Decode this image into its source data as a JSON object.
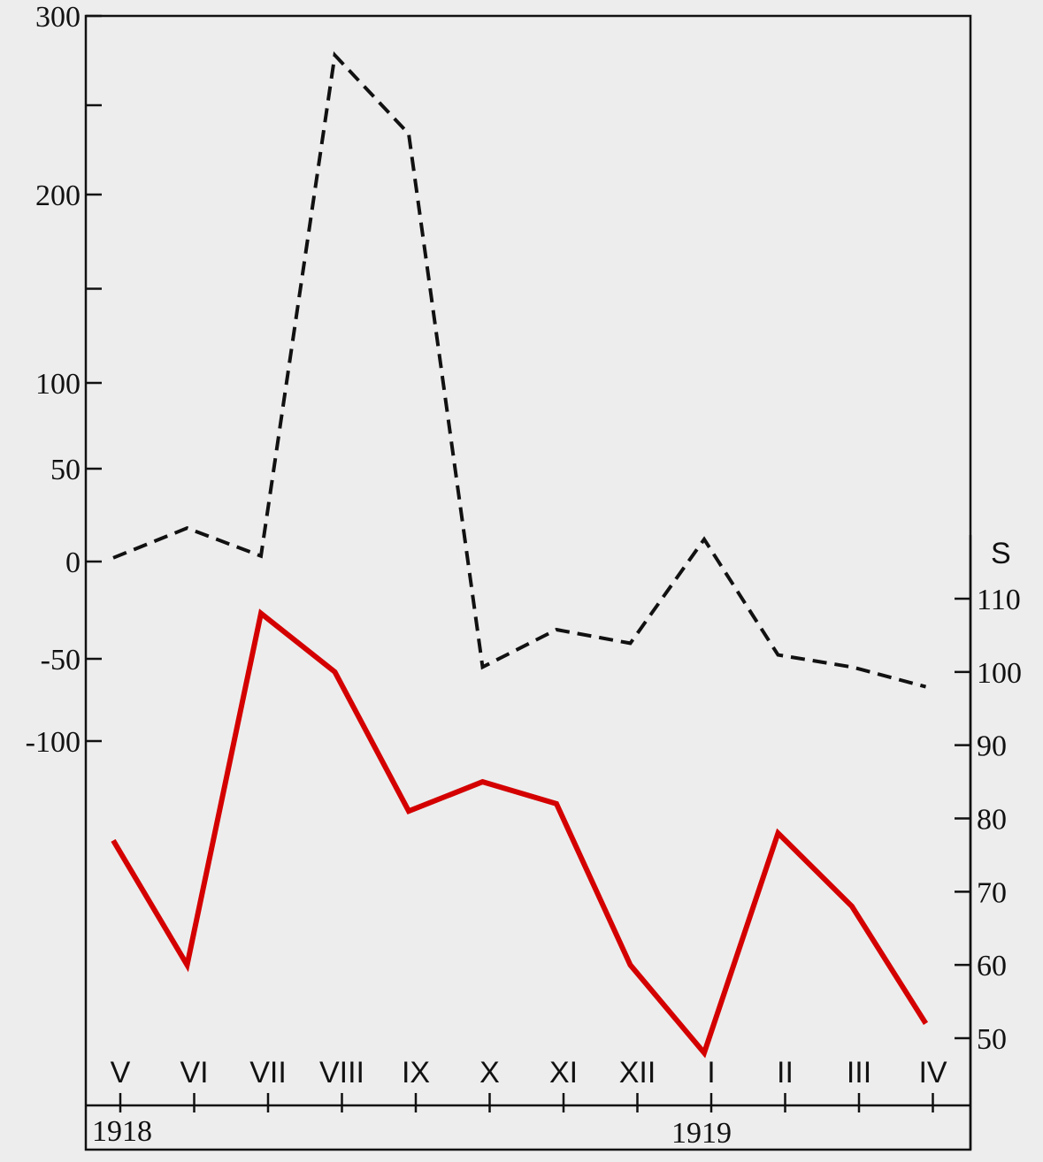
{
  "chart_data": {
    "type": "line",
    "x": [
      "V",
      "VI",
      "VII",
      "VIII",
      "IX",
      "X",
      "XI",
      "XII",
      "I",
      "II",
      "III",
      "IV"
    ],
    "year_labels": [
      "1918",
      "1919"
    ],
    "left_axis": {
      "tick_labels": [
        "300",
        "200",
        "100",
        "50",
        "0",
        "-50",
        "-100"
      ]
    },
    "right_axis": {
      "label": "S",
      "tick_labels": [
        "110",
        "100",
        "90",
        "80",
        "70",
        "60",
        "50"
      ]
    },
    "series": [
      {
        "axis": "left",
        "style": "dashed",
        "color": "#111111",
        "values": [
          2,
          18,
          3,
          278,
          234,
          -55,
          -35,
          -42,
          12,
          -48,
          -55,
          -67
        ]
      },
      {
        "axis": "right",
        "style": "solid",
        "color": "#d40000",
        "values": [
          77,
          60,
          108,
          100,
          81,
          85,
          82,
          60,
          48,
          78,
          68,
          52
        ]
      }
    ]
  }
}
